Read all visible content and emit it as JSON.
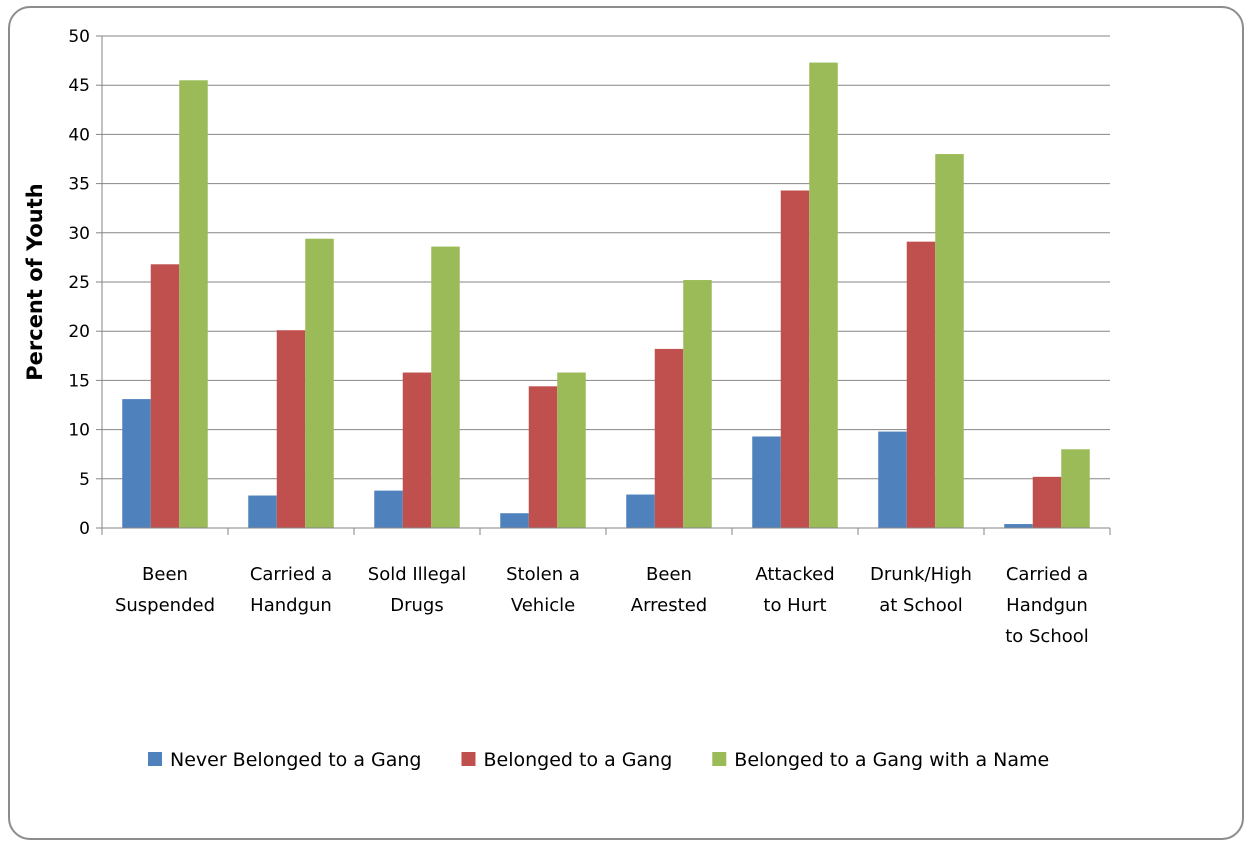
{
  "chart_data": {
    "type": "bar",
    "title": "",
    "xlabel": "",
    "ylabel": "Percent of Youth",
    "ylim": [
      0,
      50
    ],
    "yticks": [
      0,
      5,
      10,
      15,
      20,
      25,
      30,
      35,
      40,
      45,
      50
    ],
    "grid": true,
    "legend_position": "bottom",
    "categories": [
      [
        "Been",
        "Suspended"
      ],
      [
        "Carried a",
        "Handgun"
      ],
      [
        "Sold Illegal",
        "Drugs"
      ],
      [
        "Stolen a",
        "Vehicle"
      ],
      [
        "Been",
        "Arrested"
      ],
      [
        "Attacked",
        "to Hurt"
      ],
      [
        "Drunk/High",
        "at School"
      ],
      [
        "Carried a",
        "Handgun",
        "to School"
      ]
    ],
    "series": [
      {
        "name": "Never Belonged to a Gang",
        "color": "#4f81bd",
        "values": [
          13.1,
          3.3,
          3.8,
          1.5,
          3.4,
          9.3,
          9.8,
          0.4
        ]
      },
      {
        "name": "Belonged to a Gang",
        "color": "#c0504d",
        "values": [
          26.8,
          20.1,
          15.8,
          14.4,
          18.2,
          34.3,
          29.1,
          5.2
        ]
      },
      {
        "name": "Belonged to a Gang with a Name",
        "color": "#9bbb59",
        "values": [
          45.5,
          29.4,
          28.6,
          15.8,
          25.2,
          47.3,
          38.0,
          8.0
        ]
      }
    ]
  }
}
